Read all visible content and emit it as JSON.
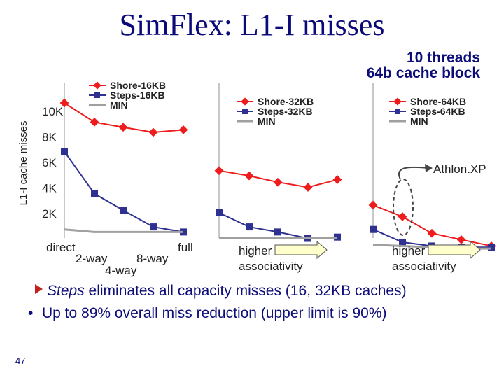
{
  "slide": {
    "title": "SimFlex: L1-I misses",
    "subnote_line1": "10 threads",
    "subnote_line2": "64b cache block",
    "bullet1_emph": "Steps",
    "bullet1_rest": " eliminates all capacity misses (16, 32KB caches)",
    "bullet2": "Up to 89% overall miss reduction (upper limit is 90%)",
    "page_number": "47"
  },
  "colors": {
    "shore": "#ee1c1c",
    "steps": "#2e3192",
    "min": "#a0a0a0",
    "text": "#0d0d7a",
    "arrow_fill": "#ffffcc",
    "annotation": "#444444"
  },
  "chart_data": {
    "type": "line",
    "ylabel": "L1-I cache misses",
    "y_ticks": [
      "10K",
      "8K",
      "6K",
      "4K",
      "2K"
    ],
    "y_tick_values": [
      10000,
      8000,
      6000,
      4000,
      2000
    ],
    "ylim": [
      0,
      11000
    ],
    "x_tick_labels": [
      "direct",
      "2-way",
      "4-way",
      "8-way",
      "full"
    ],
    "panel_xlabel": "higher associativity",
    "annotation": "Athlon.XP",
    "panels": [
      {
        "legend": [
          "Shore-16KB",
          "Steps-16KB",
          "MIN"
        ],
        "series": [
          {
            "name": "Shore-16KB",
            "values": [
              10600,
              9100,
              8700,
              8300,
              8500
            ]
          },
          {
            "name": "Steps-16KB",
            "values": [
              6800,
              3500,
              2200,
              900,
              500
            ]
          },
          {
            "name": "MIN",
            "values": [
              700,
              500,
              500,
              500,
              500
            ]
          }
        ]
      },
      {
        "legend": [
          "Shore-32KB",
          "Steps-32KB",
          "MIN"
        ],
        "series": [
          {
            "name": "Shore-32KB",
            "values": [
              5300,
              4900,
              4400,
              4000,
              4600
            ]
          },
          {
            "name": "Steps-32KB",
            "values": [
              2000,
              900,
              500,
              0,
              100
            ]
          },
          {
            "name": "MIN",
            "values": [
              0,
              0,
              0,
              0,
              0
            ]
          }
        ]
      },
      {
        "legend": [
          "Shore-64KB",
          "Steps-64KB",
          "MIN"
        ],
        "series": [
          {
            "name": "Shore-64KB",
            "values": [
              2600,
              1700,
              400,
              -100,
              -600
            ]
          },
          {
            "name": "Steps-64KB",
            "values": [
              700,
              -300,
              -600,
              -700,
              -700
            ]
          },
          {
            "name": "MIN",
            "values": [
              -500,
              -600,
              -700,
              -800,
              -800
            ]
          }
        ]
      }
    ]
  }
}
